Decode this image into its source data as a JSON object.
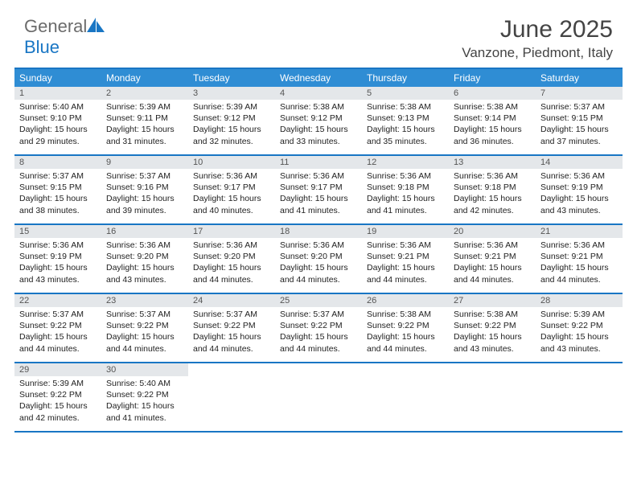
{
  "logo": {
    "word1": "General",
    "word2": "Blue"
  },
  "title": "June 2025",
  "location": "Vanzone, Piedmont, Italy",
  "colors": {
    "accent": "#2f8dd4",
    "border": "#1976c4",
    "daynum_bg": "#e4e7ea",
    "text": "#222222",
    "title": "#444444"
  },
  "daynames": [
    "Sunday",
    "Monday",
    "Tuesday",
    "Wednesday",
    "Thursday",
    "Friday",
    "Saturday"
  ],
  "weeks": [
    [
      {
        "n": "1",
        "sr": "Sunrise: 5:40 AM",
        "ss": "Sunset: 9:10 PM",
        "dl": "Daylight: 15 hours and 29 minutes."
      },
      {
        "n": "2",
        "sr": "Sunrise: 5:39 AM",
        "ss": "Sunset: 9:11 PM",
        "dl": "Daylight: 15 hours and 31 minutes."
      },
      {
        "n": "3",
        "sr": "Sunrise: 5:39 AM",
        "ss": "Sunset: 9:12 PM",
        "dl": "Daylight: 15 hours and 32 minutes."
      },
      {
        "n": "4",
        "sr": "Sunrise: 5:38 AM",
        "ss": "Sunset: 9:12 PM",
        "dl": "Daylight: 15 hours and 33 minutes."
      },
      {
        "n": "5",
        "sr": "Sunrise: 5:38 AM",
        "ss": "Sunset: 9:13 PM",
        "dl": "Daylight: 15 hours and 35 minutes."
      },
      {
        "n": "6",
        "sr": "Sunrise: 5:38 AM",
        "ss": "Sunset: 9:14 PM",
        "dl": "Daylight: 15 hours and 36 minutes."
      },
      {
        "n": "7",
        "sr": "Sunrise: 5:37 AM",
        "ss": "Sunset: 9:15 PM",
        "dl": "Daylight: 15 hours and 37 minutes."
      }
    ],
    [
      {
        "n": "8",
        "sr": "Sunrise: 5:37 AM",
        "ss": "Sunset: 9:15 PM",
        "dl": "Daylight: 15 hours and 38 minutes."
      },
      {
        "n": "9",
        "sr": "Sunrise: 5:37 AM",
        "ss": "Sunset: 9:16 PM",
        "dl": "Daylight: 15 hours and 39 minutes."
      },
      {
        "n": "10",
        "sr": "Sunrise: 5:36 AM",
        "ss": "Sunset: 9:17 PM",
        "dl": "Daylight: 15 hours and 40 minutes."
      },
      {
        "n": "11",
        "sr": "Sunrise: 5:36 AM",
        "ss": "Sunset: 9:17 PM",
        "dl": "Daylight: 15 hours and 41 minutes."
      },
      {
        "n": "12",
        "sr": "Sunrise: 5:36 AM",
        "ss": "Sunset: 9:18 PM",
        "dl": "Daylight: 15 hours and 41 minutes."
      },
      {
        "n": "13",
        "sr": "Sunrise: 5:36 AM",
        "ss": "Sunset: 9:18 PM",
        "dl": "Daylight: 15 hours and 42 minutes."
      },
      {
        "n": "14",
        "sr": "Sunrise: 5:36 AM",
        "ss": "Sunset: 9:19 PM",
        "dl": "Daylight: 15 hours and 43 minutes."
      }
    ],
    [
      {
        "n": "15",
        "sr": "Sunrise: 5:36 AM",
        "ss": "Sunset: 9:19 PM",
        "dl": "Daylight: 15 hours and 43 minutes."
      },
      {
        "n": "16",
        "sr": "Sunrise: 5:36 AM",
        "ss": "Sunset: 9:20 PM",
        "dl": "Daylight: 15 hours and 43 minutes."
      },
      {
        "n": "17",
        "sr": "Sunrise: 5:36 AM",
        "ss": "Sunset: 9:20 PM",
        "dl": "Daylight: 15 hours and 44 minutes."
      },
      {
        "n": "18",
        "sr": "Sunrise: 5:36 AM",
        "ss": "Sunset: 9:20 PM",
        "dl": "Daylight: 15 hours and 44 minutes."
      },
      {
        "n": "19",
        "sr": "Sunrise: 5:36 AM",
        "ss": "Sunset: 9:21 PM",
        "dl": "Daylight: 15 hours and 44 minutes."
      },
      {
        "n": "20",
        "sr": "Sunrise: 5:36 AM",
        "ss": "Sunset: 9:21 PM",
        "dl": "Daylight: 15 hours and 44 minutes."
      },
      {
        "n": "21",
        "sr": "Sunrise: 5:36 AM",
        "ss": "Sunset: 9:21 PM",
        "dl": "Daylight: 15 hours and 44 minutes."
      }
    ],
    [
      {
        "n": "22",
        "sr": "Sunrise: 5:37 AM",
        "ss": "Sunset: 9:22 PM",
        "dl": "Daylight: 15 hours and 44 minutes."
      },
      {
        "n": "23",
        "sr": "Sunrise: 5:37 AM",
        "ss": "Sunset: 9:22 PM",
        "dl": "Daylight: 15 hours and 44 minutes."
      },
      {
        "n": "24",
        "sr": "Sunrise: 5:37 AM",
        "ss": "Sunset: 9:22 PM",
        "dl": "Daylight: 15 hours and 44 minutes."
      },
      {
        "n": "25",
        "sr": "Sunrise: 5:37 AM",
        "ss": "Sunset: 9:22 PM",
        "dl": "Daylight: 15 hours and 44 minutes."
      },
      {
        "n": "26",
        "sr": "Sunrise: 5:38 AM",
        "ss": "Sunset: 9:22 PM",
        "dl": "Daylight: 15 hours and 44 minutes."
      },
      {
        "n": "27",
        "sr": "Sunrise: 5:38 AM",
        "ss": "Sunset: 9:22 PM",
        "dl": "Daylight: 15 hours and 43 minutes."
      },
      {
        "n": "28",
        "sr": "Sunrise: 5:39 AM",
        "ss": "Sunset: 9:22 PM",
        "dl": "Daylight: 15 hours and 43 minutes."
      }
    ],
    [
      {
        "n": "29",
        "sr": "Sunrise: 5:39 AM",
        "ss": "Sunset: 9:22 PM",
        "dl": "Daylight: 15 hours and 42 minutes."
      },
      {
        "n": "30",
        "sr": "Sunrise: 5:40 AM",
        "ss": "Sunset: 9:22 PM",
        "dl": "Daylight: 15 hours and 41 minutes."
      },
      null,
      null,
      null,
      null,
      null
    ]
  ]
}
